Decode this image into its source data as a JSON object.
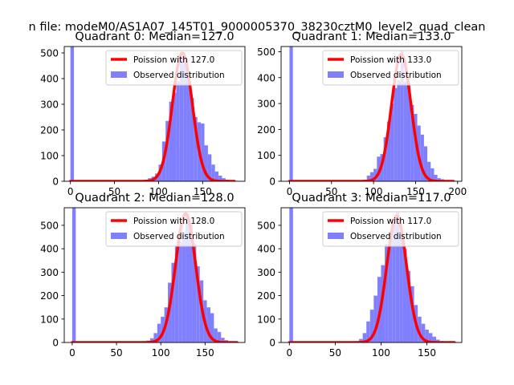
{
  "figure_title": "n file: modeM0/AS1A07_145T01_9000005370_38230cztM0_level2_quad_clean",
  "chart_data": [
    {
      "type": "bar",
      "title": "Quadrant 0: Median=127.0",
      "xlabel": "",
      "ylabel": "",
      "xlim": [
        -7,
        198
      ],
      "ylim": [
        0,
        525
      ],
      "xticks": [
        0,
        50,
        100,
        150
      ],
      "yticks": [
        0,
        100,
        200,
        300,
        400,
        500
      ],
      "bin_width": 4,
      "histogram": {
        "name": "Observed distribution",
        "color": "#8080ff",
        "bin_starts": [
          0,
          80,
          84,
          88,
          92,
          96,
          100,
          104,
          108,
          112,
          116,
          120,
          124,
          128,
          132,
          136,
          140,
          144,
          148,
          152,
          156,
          160,
          164,
          168,
          172,
          176,
          180,
          184
        ],
        "values": [
          525,
          3,
          5,
          12,
          18,
          30,
          65,
          155,
          235,
          310,
          345,
          390,
          495,
          475,
          420,
          325,
          250,
          230,
          225,
          140,
          105,
          65,
          38,
          22,
          12,
          6,
          3,
          2
        ]
      },
      "poisson": {
        "name": "Poission with 127.0",
        "mean": 127.0,
        "peak": 500,
        "x_range": [
          0,
          186
        ],
        "color": "#ff0000"
      }
    },
    {
      "type": "bar",
      "title": "Quadrant 1: Median=133.0",
      "xlabel": "",
      "ylabel": "",
      "xlim": [
        -10,
        205
      ],
      "ylim": [
        0,
        520
      ],
      "xticks": [
        0,
        50,
        100,
        150,
        200
      ],
      "yticks": [
        0,
        100,
        200,
        300,
        400,
        500
      ],
      "bin_width": 4,
      "histogram": {
        "name": "Observed distribution",
        "color": "#8080ff",
        "bin_starts": [
          0,
          88,
          92,
          96,
          100,
          104,
          108,
          112,
          116,
          120,
          124,
          128,
          132,
          136,
          140,
          144,
          148,
          152,
          156,
          160,
          164,
          168,
          172,
          176,
          180,
          184,
          188
        ],
        "values": [
          520,
          5,
          22,
          35,
          48,
          95,
          105,
          170,
          230,
          300,
          360,
          390,
          505,
          385,
          380,
          295,
          260,
          215,
          180,
          135,
          75,
          50,
          25,
          12,
          8,
          4,
          2
        ]
      },
      "poisson": {
        "name": "Poission with 133.0",
        "mean": 133.0,
        "peak": 490,
        "x_range": [
          0,
          195
        ],
        "color": "#ff0000"
      }
    },
    {
      "type": "bar",
      "title": "Quadrant 2: Median=128.0",
      "xlabel": "",
      "ylabel": "",
      "xlim": [
        -9,
        195
      ],
      "ylim": [
        0,
        575
      ],
      "xticks": [
        0,
        50,
        100,
        150
      ],
      "yticks": [
        0,
        100,
        200,
        300,
        400,
        500
      ],
      "bin_width": 4,
      "histogram": {
        "name": "Observed distribution",
        "color": "#8080ff",
        "bin_starts": [
          0,
          80,
          84,
          88,
          92,
          96,
          100,
          104,
          108,
          112,
          116,
          120,
          124,
          128,
          132,
          136,
          140,
          144,
          148,
          152,
          156,
          160,
          164,
          168,
          172,
          176,
          180,
          184
        ],
        "values": [
          575,
          3,
          8,
          18,
          40,
          80,
          110,
          150,
          255,
          340,
          415,
          430,
          470,
          550,
          505,
          420,
          325,
          265,
          180,
          150,
          125,
          60,
          45,
          20,
          10,
          5,
          3,
          2
        ]
      },
      "poisson": {
        "name": "Poission with 128.0",
        "mean": 128.0,
        "peak": 550,
        "x_range": [
          0,
          186
        ],
        "color": "#ff0000"
      }
    },
    {
      "type": "bar",
      "title": "Quadrant 3: Median=117.0",
      "xlabel": "",
      "ylabel": "",
      "xlim": [
        -9,
        188
      ],
      "ylim": [
        0,
        575
      ],
      "xticks": [
        0,
        50,
        100,
        150
      ],
      "yticks": [
        0,
        100,
        200,
        300,
        400,
        500
      ],
      "bin_width": 4,
      "histogram": {
        "name": "Observed distribution",
        "color": "#8080ff",
        "bin_starts": [
          0,
          72,
          76,
          80,
          84,
          88,
          92,
          96,
          100,
          104,
          108,
          112,
          116,
          120,
          124,
          128,
          132,
          136,
          140,
          144,
          148,
          152,
          156,
          160,
          164,
          168,
          172
        ],
        "values": [
          575,
          5,
          15,
          40,
          90,
          140,
          200,
          280,
          330,
          420,
          470,
          505,
          555,
          475,
          400,
          305,
          240,
          160,
          110,
          80,
          55,
          40,
          25,
          12,
          6,
          3,
          2
        ]
      },
      "poisson": {
        "name": "Poission with 117.0",
        "mean": 117.0,
        "peak": 540,
        "x_range": [
          0,
          180
        ],
        "color": "#ff0000"
      }
    }
  ]
}
